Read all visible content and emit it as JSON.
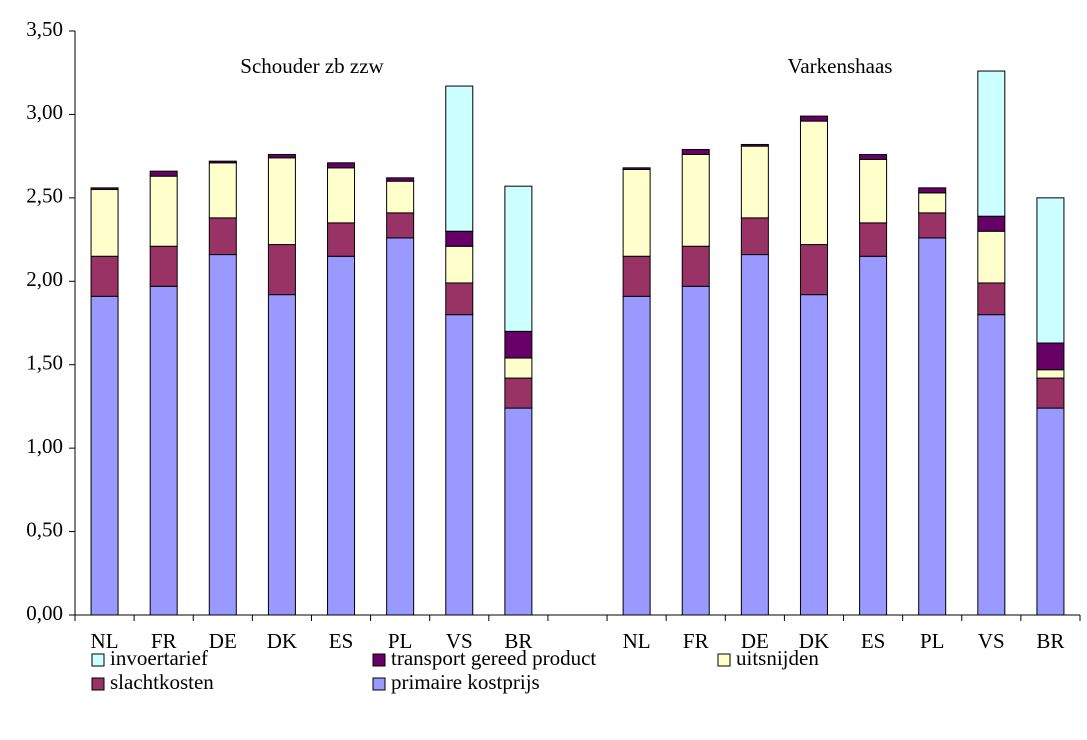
{
  "chart_data": {
    "type": "stacked_bar",
    "annotations": [
      "Schouder zb zzw",
      "Varkenshaas"
    ],
    "categories": [
      "NL",
      "FR",
      "DE",
      "DK",
      "ES",
      "PL",
      "VS",
      "BR",
      null,
      "NL",
      "FR",
      "DE",
      "DK",
      "ES",
      "PL",
      "VS",
      "BR"
    ],
    "series": [
      {
        "name": "invoertarief",
        "color": "#ccffff",
        "values": [
          0,
          0,
          0,
          0,
          0,
          0,
          0.87,
          0.87,
          null,
          0,
          0,
          0,
          0,
          0,
          0,
          0.87,
          0.87
        ]
      },
      {
        "name": "transport gereed product",
        "color": "#660066",
        "values": [
          0.01,
          0.03,
          0.01,
          0.02,
          0.03,
          0.02,
          0.09,
          0.16,
          null,
          0.01,
          0.03,
          0.01,
          0.03,
          0.03,
          0.03,
          0.09,
          0.16
        ]
      },
      {
        "name": "uitsnijden",
        "color": "#ffffcc",
        "values": [
          0.4,
          0.42,
          0.33,
          0.52,
          0.33,
          0.19,
          0.22,
          0.12,
          null,
          0.52,
          0.55,
          0.43,
          0.74,
          0.38,
          0.12,
          0.31,
          0.05
        ]
      },
      {
        "name": "slachtkosten",
        "color": "#993366",
        "values": [
          0.24,
          0.24,
          0.22,
          0.3,
          0.2,
          0.15,
          0.19,
          0.18,
          null,
          0.24,
          0.24,
          0.22,
          0.3,
          0.2,
          0.15,
          0.19,
          0.18
        ]
      },
      {
        "name": "primaire kostprijs",
        "color": "#9999ff",
        "values": [
          1.91,
          1.97,
          2.16,
          1.92,
          2.15,
          2.26,
          1.8,
          1.24,
          null,
          1.91,
          1.97,
          2.16,
          1.92,
          2.15,
          2.26,
          1.8,
          1.24
        ]
      }
    ],
    "ylim": [
      0,
      3.5
    ],
    "yticks": [
      {
        "value": 0,
        "label": "0,00"
      },
      {
        "value": 0.5,
        "label": "0,50"
      },
      {
        "value": 1,
        "label": "1,00"
      },
      {
        "value": 1.5,
        "label": "1,50"
      },
      {
        "value": 2,
        "label": "2,00"
      },
      {
        "value": 2.5,
        "label": "2,50"
      },
      {
        "value": 3,
        "label": "3,00"
      },
      {
        "value": 3.5,
        "label": "3,50"
      }
    ],
    "grid": false
  }
}
